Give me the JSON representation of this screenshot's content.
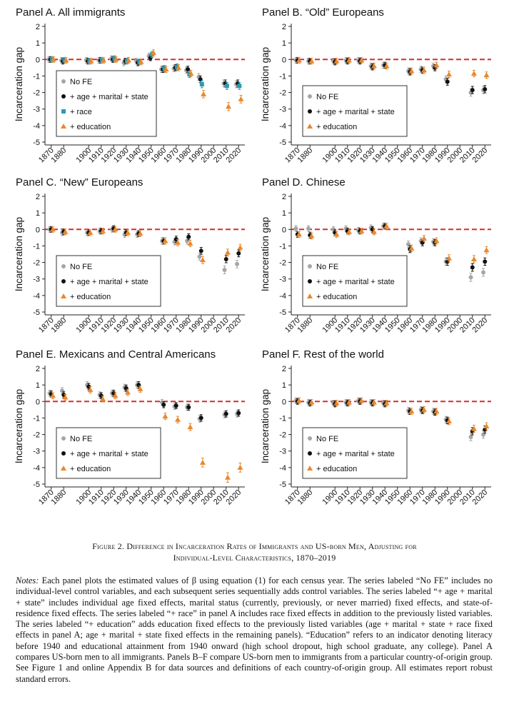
{
  "figure_caption": {
    "line1": "Figure 2. Difference in Incarceration Rates of Immigrants and US-born Men, Adjusting for",
    "line2": "Individual-Level Characteristics, 1870–2019"
  },
  "notes": {
    "lead": "Notes:",
    "text": "Each panel plots the estimated values of β using equation (1) for each census year. The series labeled “No FE” includes no individual-level control variables, and each subsequent series sequentially adds control variables. The series labeled “+ age + marital + state” includes individual age fixed effects, marital status (currently, previously, or never married) fixed effects, and state-of-residence fixed effects. The series labeled “+ race” in panel A includes race fixed effects in addition to the previously listed variables. The series labeled “+ education” adds education fixed effects to the previously listed variables (age + marital + state + race fixed effects in panel A; age + marital + state fixed effects in the remaining panels). “Education” refers to an indicator denoting literacy before 1940 and educational attainment from 1940 onward (high school dropout, high school graduate, any college). Panel A compares US-born men to all immigrants. Panels B–F compare US-born men to immigrants from a particular country-of-origin group. See Figure 1 and online Appendix B for data sources and definitions of each country-of-origin group. All estimates report robust standard errors."
  },
  "chart_data": [
    {
      "type": "scatter",
      "title": "Panel A. All immigrants",
      "ylabel": "Incarceration gap",
      "ylim": [
        -5,
        2
      ],
      "yticks": [
        "2",
        "1",
        "0",
        "-1",
        "-2",
        "-3",
        "-4",
        "-5"
      ],
      "xticks": [
        "1870",
        "1880",
        "1900",
        "1910",
        "1920",
        "1930",
        "1940",
        "1950",
        "1960",
        "1970",
        "1980",
        "1990",
        "2000",
        "2010",
        "2020"
      ],
      "legend": "bottom-left",
      "reference_line": 0,
      "series": [
        {
          "name": "No FE",
          "color": "#a6a6a6",
          "marker": "circle",
          "x": [
            1870,
            1880,
            1900,
            1910,
            1920,
            1930,
            1940,
            1950,
            1960,
            1970,
            1980,
            1990,
            2010,
            2020
          ],
          "y": [
            0.0,
            -0.05,
            -0.05,
            -0.05,
            0.05,
            -0.2,
            -0.1,
            0.2,
            -0.6,
            -0.55,
            -0.65,
            -1.05,
            -1.45,
            -1.5
          ]
        },
        {
          "name": "+ age + marital + state",
          "color": "#111111",
          "marker": "circle",
          "x": [
            1870,
            1880,
            1900,
            1910,
            1920,
            1930,
            1940,
            1950,
            1960,
            1970,
            1980,
            1990,
            2010,
            2020
          ],
          "y": [
            0.0,
            -0.1,
            -0.1,
            -0.05,
            0.0,
            -0.1,
            -0.2,
            0.1,
            -0.6,
            -0.5,
            -0.6,
            -1.2,
            -1.45,
            -1.45
          ]
        },
        {
          "name": "+ race",
          "color": "#2a9bb5",
          "marker": "square",
          "x": [
            1870,
            1880,
            1900,
            1910,
            1920,
            1930,
            1940,
            1950,
            1960,
            1970,
            1980,
            1990,
            2010,
            2020
          ],
          "y": [
            0.0,
            -0.05,
            -0.1,
            -0.05,
            0.05,
            -0.1,
            -0.15,
            0.3,
            -0.55,
            -0.45,
            -0.9,
            -1.5,
            -1.6,
            -1.6
          ]
        },
        {
          "name": "+ education",
          "color": "#e8882e",
          "marker": "triangle",
          "x": [
            1870,
            1880,
            1900,
            1910,
            1920,
            1930,
            1940,
            1950,
            1960,
            1970,
            1980,
            1990,
            2010,
            2020
          ],
          "y": [
            0.0,
            -0.05,
            -0.1,
            -0.05,
            0.0,
            -0.05,
            -0.15,
            0.4,
            -0.6,
            -0.5,
            -0.85,
            -2.1,
            -2.85,
            -2.4
          ]
        }
      ]
    },
    {
      "type": "scatter",
      "title": "Panel B. “Old” Europeans",
      "ylabel": "Incarceration gap",
      "ylim": [
        -5,
        2
      ],
      "yticks": [
        "2",
        "1",
        "0",
        "-1",
        "-2",
        "-3",
        "-4",
        "-5"
      ],
      "xticks": [
        "1870",
        "1880",
        "1900",
        "1910",
        "1920",
        "1930",
        "1940",
        "1950",
        "1960",
        "1970",
        "1980",
        "1990",
        "2000",
        "2010",
        "2020"
      ],
      "legend": "bottom-left",
      "reference_line": 0,
      "series": [
        {
          "name": "No FE",
          "color": "#a6a6a6",
          "marker": "circle",
          "x": [
            1870,
            1880,
            1900,
            1910,
            1920,
            1930,
            1940,
            1960,
            1970,
            1980,
            1990,
            2010,
            2020
          ],
          "y": [
            -0.05,
            -0.1,
            -0.1,
            -0.05,
            -0.05,
            -0.4,
            -0.35,
            -0.7,
            -0.6,
            -0.4,
            -1.2,
            -2.0,
            -1.85
          ]
        },
        {
          "name": "+ age + marital + state",
          "color": "#111111",
          "marker": "circle",
          "x": [
            1870,
            1880,
            1900,
            1910,
            1920,
            1930,
            1940,
            1960,
            1970,
            1980,
            1990,
            2010,
            2020
          ],
          "y": [
            -0.05,
            -0.1,
            -0.15,
            -0.1,
            -0.1,
            -0.45,
            -0.35,
            -0.75,
            -0.65,
            -0.5,
            -1.35,
            -1.85,
            -1.8
          ]
        },
        {
          "name": "+ education",
          "color": "#e8882e",
          "marker": "triangle",
          "x": [
            1870,
            1880,
            1900,
            1910,
            1920,
            1930,
            1940,
            1960,
            1970,
            1980,
            1990,
            2010,
            2020
          ],
          "y": [
            -0.05,
            -0.1,
            -0.1,
            -0.05,
            -0.05,
            -0.4,
            -0.4,
            -0.7,
            -0.65,
            -0.35,
            -0.9,
            -0.85,
            -0.95
          ]
        }
      ]
    },
    {
      "type": "scatter",
      "title": "Panel C. “New” Europeans",
      "ylabel": "Incarceration gap",
      "ylim": [
        -5,
        2
      ],
      "yticks": [
        "2",
        "1",
        "0",
        "-1",
        "-2",
        "-3",
        "-4",
        "-5"
      ],
      "xticks": [
        "1870",
        "1880",
        "1900",
        "1910",
        "1920",
        "1930",
        "1940",
        "1950",
        "1960",
        "1970",
        "1980",
        "1990",
        "2000",
        "2010",
        "2020"
      ],
      "legend": "bottom-left",
      "reference_line": 0,
      "series": [
        {
          "name": "No FE",
          "color": "#a6a6a6",
          "marker": "circle",
          "x": [
            1870,
            1880,
            1900,
            1910,
            1920,
            1930,
            1940,
            1960,
            1970,
            1980,
            1990,
            2010,
            2020
          ],
          "y": [
            0.0,
            -0.2,
            -0.2,
            -0.1,
            0.0,
            -0.3,
            -0.3,
            -0.7,
            -0.75,
            -0.7,
            -1.65,
            -2.45,
            -2.1
          ]
        },
        {
          "name": "+ age + marital + state",
          "color": "#111111",
          "marker": "circle",
          "x": [
            1870,
            1880,
            1900,
            1910,
            1920,
            1930,
            1940,
            1960,
            1970,
            1980,
            1990,
            2010,
            2020
          ],
          "y": [
            0.0,
            -0.15,
            -0.2,
            -0.1,
            0.05,
            -0.2,
            -0.25,
            -0.7,
            -0.6,
            -0.45,
            -1.3,
            -1.8,
            -1.45
          ]
        },
        {
          "name": "+ education",
          "color": "#e8882e",
          "marker": "triangle",
          "x": [
            1870,
            1880,
            1900,
            1910,
            1920,
            1930,
            1940,
            1960,
            1970,
            1980,
            1990,
            2010,
            2020
          ],
          "y": [
            0.0,
            -0.15,
            -0.2,
            -0.1,
            0.0,
            -0.2,
            -0.25,
            -0.7,
            -0.8,
            -0.85,
            -1.85,
            -1.4,
            -1.1
          ]
        }
      ]
    },
    {
      "type": "scatter",
      "title": "Panel D. Chinese",
      "ylabel": "Incarceration gap",
      "ylim": [
        -5,
        2
      ],
      "yticks": [
        "2",
        "1",
        "0",
        "-1",
        "-2",
        "-3",
        "-4",
        "-5"
      ],
      "xticks": [
        "1870",
        "1880",
        "1900",
        "1910",
        "1920",
        "1930",
        "1940",
        "1950",
        "1960",
        "1970",
        "1980",
        "1990",
        "2000",
        "2010",
        "2020"
      ],
      "legend": "bottom-left",
      "reference_line": 0,
      "series": [
        {
          "name": "No FE",
          "color": "#a6a6a6",
          "marker": "circle",
          "x": [
            1870,
            1880,
            1900,
            1910,
            1920,
            1930,
            1940,
            1960,
            1970,
            1980,
            1990,
            2010,
            2020
          ],
          "y": [
            0.05,
            0.05,
            0.0,
            0.05,
            -0.05,
            0.1,
            0.2,
            -0.9,
            -0.7,
            -0.75,
            -1.95,
            -2.9,
            -2.6
          ]
        },
        {
          "name": "+ age + marital + state",
          "color": "#111111",
          "marker": "circle",
          "x": [
            1870,
            1880,
            1900,
            1910,
            1920,
            1930,
            1940,
            1960,
            1970,
            1980,
            1990,
            2010,
            2020
          ],
          "y": [
            -0.3,
            -0.35,
            -0.2,
            -0.1,
            -0.1,
            0.0,
            0.2,
            -1.2,
            -0.8,
            -0.8,
            -1.95,
            -2.3,
            -1.95
          ]
        },
        {
          "name": "+ education",
          "color": "#e8882e",
          "marker": "triangle",
          "x": [
            1870,
            1880,
            1900,
            1910,
            1920,
            1930,
            1940,
            1960,
            1970,
            1980,
            1990,
            2010,
            2020
          ],
          "y": [
            -0.3,
            -0.4,
            -0.3,
            -0.15,
            -0.1,
            -0.15,
            0.2,
            -1.15,
            -0.55,
            -0.7,
            -1.75,
            -1.8,
            -1.25
          ]
        }
      ]
    },
    {
      "type": "scatter",
      "title": "Panel E. Mexicans and Central Americans",
      "ylabel": "Incarceration gap",
      "ylim": [
        -5,
        2
      ],
      "yticks": [
        "2",
        "1",
        "0",
        "-1",
        "-2",
        "-3",
        "-4",
        "-5"
      ],
      "xticks": [
        "1870",
        "1880",
        "1900",
        "1910",
        "1920",
        "1930",
        "1940",
        "1950",
        "1960",
        "1970",
        "1980",
        "1990",
        "2000",
        "2010",
        "2020"
      ],
      "legend": "bottom-left",
      "reference_line": 0,
      "series": [
        {
          "name": "No FE",
          "color": "#a6a6a6",
          "marker": "circle",
          "x": [
            1870,
            1880,
            1900,
            1910,
            1920,
            1930,
            1940,
            1960,
            1970,
            1980,
            1990,
            2010,
            2020
          ],
          "y": [
            0.5,
            0.65,
            1.0,
            0.4,
            0.5,
            0.85,
            1.0,
            -0.05,
            -0.3,
            -0.35,
            -1.05,
            -0.8,
            -0.75
          ]
        },
        {
          "name": "+ age + marital + state",
          "color": "#111111",
          "marker": "circle",
          "x": [
            1870,
            1880,
            1900,
            1910,
            1920,
            1930,
            1940,
            1960,
            1970,
            1980,
            1990,
            2010,
            2020
          ],
          "y": [
            0.45,
            0.4,
            0.9,
            0.35,
            0.5,
            0.8,
            1.0,
            -0.2,
            -0.25,
            -0.35,
            -1.0,
            -0.75,
            -0.7
          ]
        },
        {
          "name": "+ education",
          "color": "#e8882e",
          "marker": "triangle",
          "x": [
            1870,
            1880,
            1900,
            1910,
            1920,
            1930,
            1940,
            1960,
            1970,
            1980,
            1990,
            2010,
            2020
          ],
          "y": [
            0.35,
            0.25,
            0.7,
            0.15,
            0.35,
            0.55,
            0.75,
            -0.9,
            -1.1,
            -1.55,
            -3.7,
            -4.6,
            -4.0
          ]
        }
      ]
    },
    {
      "type": "scatter",
      "title": "Panel F. Rest of the world",
      "ylabel": "Incarceration gap",
      "ylim": [
        -5,
        2
      ],
      "yticks": [
        "2",
        "1",
        "0",
        "-1",
        "-2",
        "-3",
        "-4",
        "-5"
      ],
      "xticks": [
        "1870",
        "1880",
        "1900",
        "1910",
        "1920",
        "1930",
        "1940",
        "1950",
        "1960",
        "1970",
        "1980",
        "1990",
        "2000",
        "2010",
        "2020"
      ],
      "legend": "bottom-left",
      "reference_line": 0,
      "series": [
        {
          "name": "No FE",
          "color": "#a6a6a6",
          "marker": "circle",
          "x": [
            1870,
            1880,
            1900,
            1910,
            1920,
            1930,
            1940,
            1960,
            1970,
            1980,
            1990,
            2010,
            2020
          ],
          "y": [
            0.05,
            -0.05,
            -0.1,
            -0.05,
            0.05,
            -0.05,
            -0.1,
            -0.55,
            -0.5,
            -0.6,
            -1.1,
            -2.15,
            -2.0
          ]
        },
        {
          "name": "+ age + marital + state",
          "color": "#111111",
          "marker": "circle",
          "x": [
            1870,
            1880,
            1900,
            1910,
            1920,
            1930,
            1940,
            1960,
            1970,
            1980,
            1990,
            2010,
            2020
          ],
          "y": [
            0.0,
            -0.1,
            -0.15,
            -0.1,
            0.0,
            -0.1,
            -0.15,
            -0.6,
            -0.55,
            -0.65,
            -1.15,
            -1.8,
            -1.7
          ]
        },
        {
          "name": "+ education",
          "color": "#e8882e",
          "marker": "triangle",
          "x": [
            1870,
            1880,
            1900,
            1910,
            1920,
            1930,
            1940,
            1960,
            1970,
            1980,
            1990,
            2010,
            2020
          ],
          "y": [
            0.05,
            -0.05,
            -0.1,
            -0.05,
            0.05,
            -0.05,
            -0.1,
            -0.6,
            -0.5,
            -0.6,
            -1.2,
            -1.65,
            -1.5
          ]
        }
      ]
    }
  ]
}
